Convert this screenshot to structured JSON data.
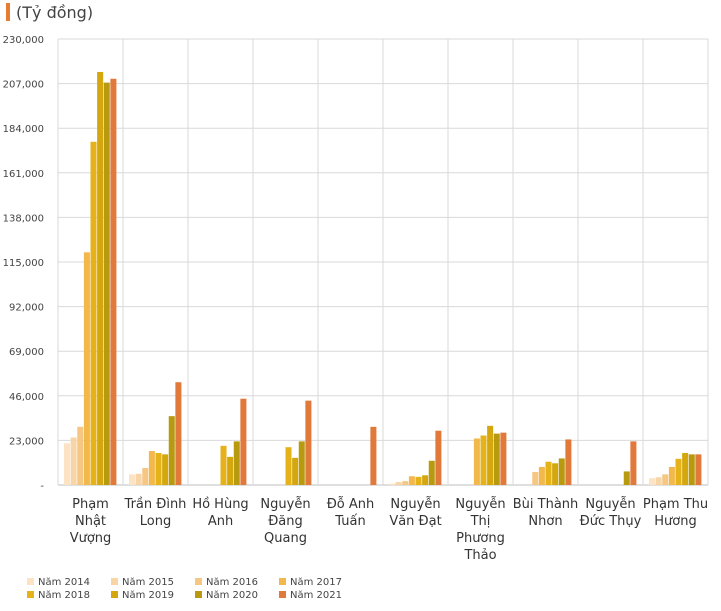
{
  "unit_label": "(Tỷ đồng)",
  "colors": {
    "accent": "#e67e32",
    "grid": "#d9d9d9",
    "axis": "#bfbfbf",
    "tick_text": "#444444",
    "category_text": "#333333"
  },
  "chart_data": {
    "type": "bar",
    "title": "",
    "xlabel": "",
    "ylabel": "(Tỷ đồng)",
    "ylim": [
      0,
      230000
    ],
    "yticks": [
      "-",
      "23,000",
      "46,000",
      "69,000",
      "92,000",
      "115,000",
      "138,000",
      "161,000",
      "184,000",
      "207,000",
      "230,000"
    ],
    "grid": true,
    "legend_position": "bottom-left",
    "categories": [
      "Phạm Nhật Vượng",
      "Trần Đình Long",
      "Hồ Hùng Anh",
      "Nguyễn Đăng Quang",
      "Đỗ Anh Tuấn",
      "Nguyễn Văn Đạt",
      "Nguyễn Thị Phương Thảo",
      "Bùi Thành Nhơn",
      "Nguyễn Đức Thụy",
      "Phạm Thu Hương"
    ],
    "category_lines": [
      [
        "Phạm",
        "Nhật",
        "Vượng"
      ],
      [
        "Trần Đình",
        "Long"
      ],
      [
        "Hồ Hùng",
        "Anh"
      ],
      [
        "Nguyễn",
        "Đăng",
        "Quang"
      ],
      [
        "Đỗ Anh",
        "Tuấn"
      ],
      [
        "Nguyễn",
        "Văn Đạt"
      ],
      [
        "Nguyễn",
        "Thị",
        "Phương",
        "Thảo"
      ],
      [
        "Bùi Thành",
        "Nhơn"
      ],
      [
        "Nguyễn",
        "Đức Thụy"
      ],
      [
        "Phạm Thu",
        "Hương"
      ]
    ],
    "series": [
      {
        "name": "Năm 2014",
        "color": "#fbe3c4",
        "values": [
          21500,
          5500,
          0,
          0,
          0,
          700,
          0,
          0,
          0,
          3500
        ]
      },
      {
        "name": "Năm 2015",
        "color": "#f8d5a6",
        "values": [
          24500,
          5800,
          0,
          0,
          0,
          1500,
          0,
          0,
          0,
          4000
        ]
      },
      {
        "name": "Năm 2016",
        "color": "#f6c783",
        "values": [
          30000,
          8800,
          0,
          0,
          0,
          2000,
          0,
          6700,
          0,
          5500
        ]
      },
      {
        "name": "Năm 2017",
        "color": "#f2b84b",
        "values": [
          120000,
          17500,
          0,
          0,
          0,
          4500,
          24000,
          9300,
          0,
          9300
        ]
      },
      {
        "name": "Năm 2018",
        "color": "#e6b21a",
        "values": [
          177000,
          16500,
          20200,
          19500,
          0,
          4200,
          25500,
          12000,
          0,
          13500
        ]
      },
      {
        "name": "Năm 2019",
        "color": "#d4a70f",
        "values": [
          213000,
          15800,
          14500,
          14000,
          0,
          5000,
          30500,
          11200,
          0,
          16500
        ]
      },
      {
        "name": "Năm 2020",
        "color": "#b89a10",
        "values": [
          207500,
          35500,
          22500,
          22500,
          0,
          12500,
          26500,
          13700,
          7000,
          15800
        ]
      },
      {
        "name": "Năm 2021",
        "color": "#e0793a",
        "values": [
          209500,
          53000,
          44500,
          43500,
          30000,
          28000,
          27000,
          23500,
          22500,
          15800
        ]
      }
    ]
  }
}
